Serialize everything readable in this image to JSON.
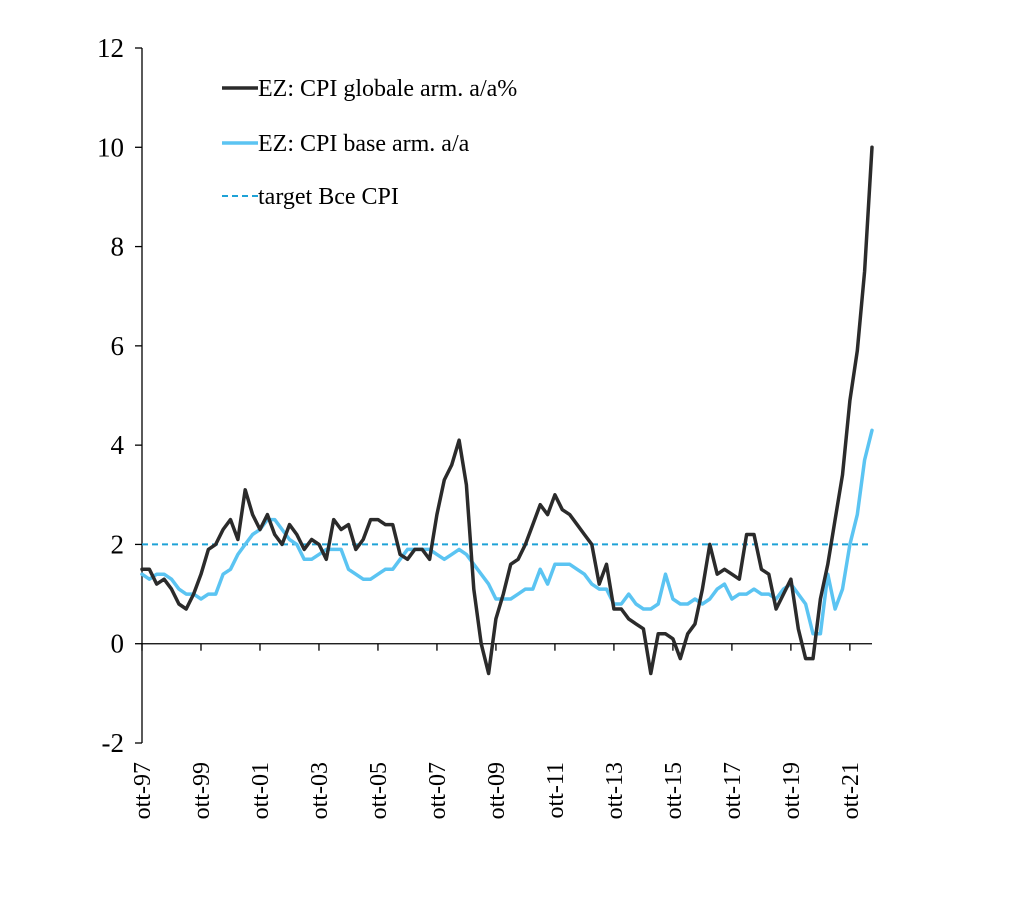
{
  "chart_data": {
    "type": "line",
    "title": "",
    "xlabel": "",
    "ylabel": "",
    "ylim": [
      -2,
      12
    ],
    "yticks": [
      -2,
      0,
      2,
      4,
      6,
      8,
      10,
      12
    ],
    "ytick_labels": [
      "-2",
      "0",
      "2",
      "4",
      "6",
      "8",
      "10",
      "12"
    ],
    "xlim": [
      1997.75,
      2022.5
    ],
    "xticks": [
      {
        "x": 1997.75,
        "label": "ott-97"
      },
      {
        "x": 1999.75,
        "label": "ott-99"
      },
      {
        "x": 2001.75,
        "label": "ott-01"
      },
      {
        "x": 2003.75,
        "label": "ott-03"
      },
      {
        "x": 2005.75,
        "label": "ott-05"
      },
      {
        "x": 2007.75,
        "label": "ott-07"
      },
      {
        "x": 2009.75,
        "label": "ott-09"
      },
      {
        "x": 2011.75,
        "label": "ott-11"
      },
      {
        "x": 2013.75,
        "label": "ott-13"
      },
      {
        "x": 2015.75,
        "label": "ott-15"
      },
      {
        "x": 2017.75,
        "label": "ott-17"
      },
      {
        "x": 2019.75,
        "label": "ott-19"
      },
      {
        "x": 2021.75,
        "label": "ott-21"
      }
    ],
    "grid": false,
    "legend_position": "top-left",
    "series": [
      {
        "name": "EZ: CPI globale arm. a/a%",
        "color": "#2b2b2b",
        "style": "solid",
        "points": [
          [
            1997.75,
            1.5
          ],
          [
            1998.0,
            1.5
          ],
          [
            1998.25,
            1.2
          ],
          [
            1998.5,
            1.3
          ],
          [
            1998.75,
            1.1
          ],
          [
            1999.0,
            0.8
          ],
          [
            1999.25,
            0.7
          ],
          [
            1999.5,
            1.0
          ],
          [
            1999.75,
            1.4
          ],
          [
            2000.0,
            1.9
          ],
          [
            2000.25,
            2.0
          ],
          [
            2000.5,
            2.3
          ],
          [
            2000.75,
            2.5
          ],
          [
            2001.0,
            2.1
          ],
          [
            2001.25,
            3.1
          ],
          [
            2001.5,
            2.6
          ],
          [
            2001.75,
            2.3
          ],
          [
            2002.0,
            2.6
          ],
          [
            2002.25,
            2.2
          ],
          [
            2002.5,
            2.0
          ],
          [
            2002.75,
            2.4
          ],
          [
            2003.0,
            2.2
          ],
          [
            2003.25,
            1.9
          ],
          [
            2003.5,
            2.1
          ],
          [
            2003.75,
            2.0
          ],
          [
            2004.0,
            1.7
          ],
          [
            2004.25,
            2.5
          ],
          [
            2004.5,
            2.3
          ],
          [
            2004.75,
            2.4
          ],
          [
            2005.0,
            1.9
          ],
          [
            2005.25,
            2.1
          ],
          [
            2005.5,
            2.5
          ],
          [
            2005.75,
            2.5
          ],
          [
            2006.0,
            2.4
          ],
          [
            2006.25,
            2.4
          ],
          [
            2006.5,
            1.8
          ],
          [
            2006.75,
            1.7
          ],
          [
            2007.0,
            1.9
          ],
          [
            2007.25,
            1.9
          ],
          [
            2007.5,
            1.7
          ],
          [
            2007.75,
            2.6
          ],
          [
            2008.0,
            3.3
          ],
          [
            2008.25,
            3.6
          ],
          [
            2008.5,
            4.1
          ],
          [
            2008.75,
            3.2
          ],
          [
            2009.0,
            1.1
          ],
          [
            2009.25,
            0.0
          ],
          [
            2009.5,
            -0.6
          ],
          [
            2009.75,
            0.5
          ],
          [
            2010.0,
            1.0
          ],
          [
            2010.25,
            1.6
          ],
          [
            2010.5,
            1.7
          ],
          [
            2010.75,
            2.0
          ],
          [
            2011.0,
            2.4
          ],
          [
            2011.25,
            2.8
          ],
          [
            2011.5,
            2.6
          ],
          [
            2011.75,
            3.0
          ],
          [
            2012.0,
            2.7
          ],
          [
            2012.25,
            2.6
          ],
          [
            2012.5,
            2.4
          ],
          [
            2012.75,
            2.2
          ],
          [
            2013.0,
            2.0
          ],
          [
            2013.25,
            1.2
          ],
          [
            2013.5,
            1.6
          ],
          [
            2013.75,
            0.7
          ],
          [
            2014.0,
            0.7
          ],
          [
            2014.25,
            0.5
          ],
          [
            2014.5,
            0.4
          ],
          [
            2014.75,
            0.3
          ],
          [
            2015.0,
            -0.6
          ],
          [
            2015.25,
            0.2
          ],
          [
            2015.5,
            0.2
          ],
          [
            2015.75,
            0.1
          ],
          [
            2016.0,
            -0.3
          ],
          [
            2016.25,
            0.2
          ],
          [
            2016.5,
            0.4
          ],
          [
            2016.75,
            1.1
          ],
          [
            2017.0,
            2.0
          ],
          [
            2017.25,
            1.4
          ],
          [
            2017.5,
            1.5
          ],
          [
            2017.75,
            1.4
          ],
          [
            2018.0,
            1.3
          ],
          [
            2018.25,
            2.2
          ],
          [
            2018.5,
            2.2
          ],
          [
            2018.75,
            1.5
          ],
          [
            2019.0,
            1.4
          ],
          [
            2019.25,
            0.7
          ],
          [
            2019.5,
            1.0
          ],
          [
            2019.75,
            1.3
          ],
          [
            2020.0,
            0.3
          ],
          [
            2020.25,
            -0.3
          ],
          [
            2020.5,
            -0.3
          ],
          [
            2020.75,
            0.9
          ],
          [
            2021.0,
            1.6
          ],
          [
            2021.25,
            2.5
          ],
          [
            2021.5,
            3.4
          ],
          [
            2021.75,
            4.9
          ],
          [
            2022.0,
            5.9
          ],
          [
            2022.25,
            7.5
          ],
          [
            2022.5,
            10.0
          ]
        ]
      },
      {
        "name": "EZ: CPI base arm. a/a",
        "color": "#5bc4f2",
        "style": "solid",
        "points": [
          [
            1997.75,
            1.4
          ],
          [
            1998.0,
            1.3
          ],
          [
            1998.25,
            1.4
          ],
          [
            1998.5,
            1.4
          ],
          [
            1998.75,
            1.3
          ],
          [
            1999.0,
            1.1
          ],
          [
            1999.25,
            1.0
          ],
          [
            1999.5,
            1.0
          ],
          [
            1999.75,
            0.9
          ],
          [
            2000.0,
            1.0
          ],
          [
            2000.25,
            1.0
          ],
          [
            2000.5,
            1.4
          ],
          [
            2000.75,
            1.5
          ],
          [
            2001.0,
            1.8
          ],
          [
            2001.25,
            2.0
          ],
          [
            2001.5,
            2.2
          ],
          [
            2001.75,
            2.3
          ],
          [
            2002.0,
            2.5
          ],
          [
            2002.25,
            2.5
          ],
          [
            2002.5,
            2.3
          ],
          [
            2002.75,
            2.1
          ],
          [
            2003.0,
            2.0
          ],
          [
            2003.25,
            1.7
          ],
          [
            2003.5,
            1.7
          ],
          [
            2003.75,
            1.8
          ],
          [
            2004.0,
            1.9
          ],
          [
            2004.25,
            1.9
          ],
          [
            2004.5,
            1.9
          ],
          [
            2004.75,
            1.5
          ],
          [
            2005.0,
            1.4
          ],
          [
            2005.25,
            1.3
          ],
          [
            2005.5,
            1.3
          ],
          [
            2005.75,
            1.4
          ],
          [
            2006.0,
            1.5
          ],
          [
            2006.25,
            1.5
          ],
          [
            2006.5,
            1.7
          ],
          [
            2006.75,
            1.9
          ],
          [
            2007.0,
            1.9
          ],
          [
            2007.25,
            1.9
          ],
          [
            2007.5,
            1.9
          ],
          [
            2007.75,
            1.8
          ],
          [
            2008.0,
            1.7
          ],
          [
            2008.25,
            1.8
          ],
          [
            2008.5,
            1.9
          ],
          [
            2008.75,
            1.8
          ],
          [
            2009.0,
            1.6
          ],
          [
            2009.25,
            1.4
          ],
          [
            2009.5,
            1.2
          ],
          [
            2009.75,
            0.9
          ],
          [
            2010.0,
            0.9
          ],
          [
            2010.25,
            0.9
          ],
          [
            2010.5,
            1.0
          ],
          [
            2010.75,
            1.1
          ],
          [
            2011.0,
            1.1
          ],
          [
            2011.25,
            1.5
          ],
          [
            2011.5,
            1.2
          ],
          [
            2011.75,
            1.6
          ],
          [
            2012.0,
            1.6
          ],
          [
            2012.25,
            1.6
          ],
          [
            2012.5,
            1.5
          ],
          [
            2012.75,
            1.4
          ],
          [
            2013.0,
            1.2
          ],
          [
            2013.25,
            1.1
          ],
          [
            2013.5,
            1.1
          ],
          [
            2013.75,
            0.8
          ],
          [
            2014.0,
            0.8
          ],
          [
            2014.25,
            1.0
          ],
          [
            2014.5,
            0.8
          ],
          [
            2014.75,
            0.7
          ],
          [
            2015.0,
            0.7
          ],
          [
            2015.25,
            0.8
          ],
          [
            2015.5,
            1.4
          ],
          [
            2015.75,
            0.9
          ],
          [
            2016.0,
            0.8
          ],
          [
            2016.25,
            0.8
          ],
          [
            2016.5,
            0.9
          ],
          [
            2016.75,
            0.8
          ],
          [
            2017.0,
            0.9
          ],
          [
            2017.25,
            1.1
          ],
          [
            2017.5,
            1.2
          ],
          [
            2017.75,
            0.9
          ],
          [
            2018.0,
            1.0
          ],
          [
            2018.25,
            1.0
          ],
          [
            2018.5,
            1.1
          ],
          [
            2018.75,
            1.0
          ],
          [
            2019.0,
            1.0
          ],
          [
            2019.25,
            0.9
          ],
          [
            2019.5,
            1.1
          ],
          [
            2019.75,
            1.2
          ],
          [
            2020.0,
            1.0
          ],
          [
            2020.25,
            0.8
          ],
          [
            2020.5,
            0.2
          ],
          [
            2020.75,
            0.2
          ],
          [
            2021.0,
            1.4
          ],
          [
            2021.25,
            0.7
          ],
          [
            2021.5,
            1.1
          ],
          [
            2021.75,
            2.0
          ],
          [
            2022.0,
            2.6
          ],
          [
            2022.25,
            3.7
          ],
          [
            2022.5,
            4.3
          ]
        ]
      },
      {
        "name": "target Bce CPI",
        "color": "#1fa2d6",
        "style": "dashed",
        "points": [
          [
            1997.75,
            2.0
          ],
          [
            2022.5,
            2.0
          ]
        ]
      }
    ]
  }
}
